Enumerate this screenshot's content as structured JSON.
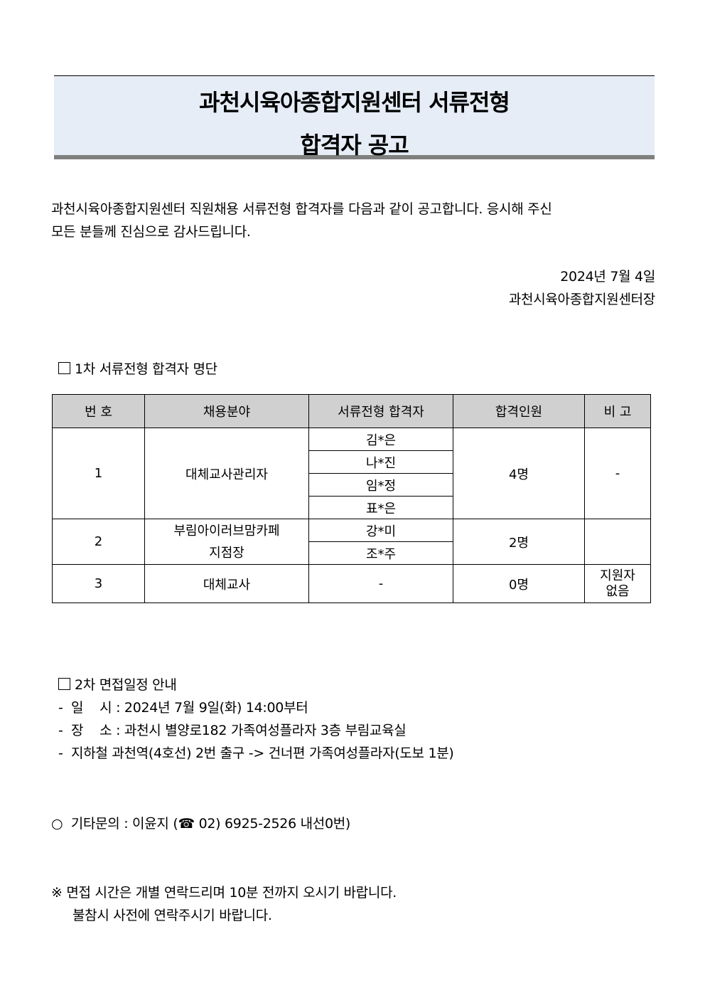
{
  "title": {
    "line1": "과천시육아종합지원센터 서류전형",
    "line2": "합격자 공고"
  },
  "intro": {
    "line1": "과천시육아종합지원센터 직원채용 서류전형 합격자를 다음과 같이 공고합니다. 응시해 주신",
    "line2": "모든 분들께 진심으로 감사드립니다."
  },
  "date": "2024년  7월  4일",
  "issuer": "과천시육아종합지원센터장",
  "section1": {
    "heading": "1차 서류전형 합격자 명단"
  },
  "table": {
    "headers": [
      "번 호",
      "채용분야",
      "서류전형 합격자",
      "합격인원",
      "비 고"
    ],
    "rows": [
      {
        "no": "1",
        "field": "대체교사관리자",
        "names": [
          "김*은",
          "나*진",
          "임*정",
          "표*은"
        ],
        "count": "4명",
        "note": "-"
      },
      {
        "no": "2",
        "field_line1": "부림아이러브맘카페",
        "field_line2": "지점장",
        "names": [
          "강*미",
          "조*주"
        ],
        "count": "2명",
        "note": ""
      },
      {
        "no": "3",
        "field": "대체교사",
        "names": [
          "-"
        ],
        "count": "0명",
        "note_line1": "지원자",
        "note_line2": "없음"
      }
    ]
  },
  "section2": {
    "heading": "2차 면접일정 안내",
    "items": [
      "-  일    시 : 2024년 7월 9일(화) 14:00부터",
      "-  장    소 : 과천시 별양로182 가족여성플라자 3층 부림교육실",
      "-  지하철 과천역(4호선) 2번 출구 -> 건너편 가족여성플라자(도보 1분)"
    ]
  },
  "contact": {
    "prefix": "○  기타문의 : 이윤지 (",
    "phone_icon": "telephone-icon",
    "phone": " 02) 6925-2526 내선0번)"
  },
  "notice": {
    "line1": "※ 면접 시간은 개별 연락드리며 10분 전까지 오시기 바랍니다.",
    "line2": "불참시 사전에 연락주시기 바랍니다."
  }
}
